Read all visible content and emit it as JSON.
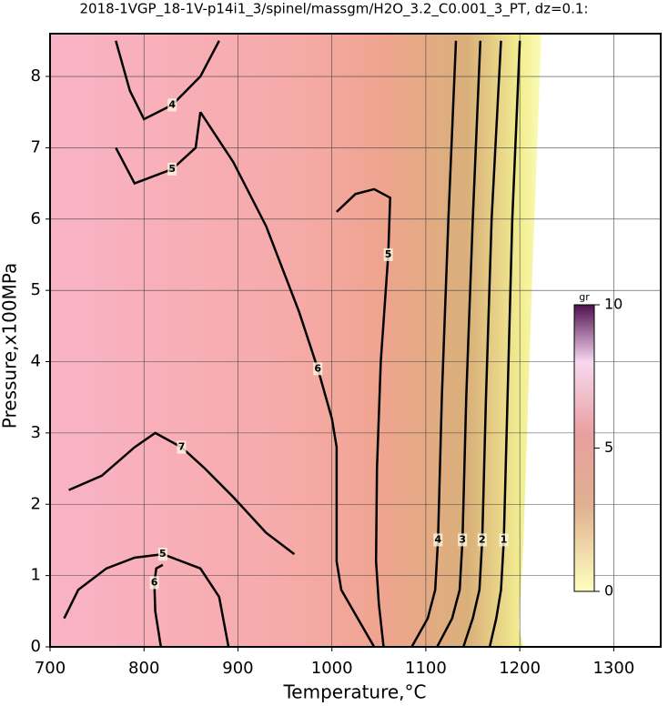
{
  "chart_data": {
    "type": "contour",
    "title": "2018-1VGP_18-1V-p14i1_3/spinel/massgm/H2O_3.2_C0.001_3_PT, dz=0.1:",
    "x_label": "Temperature,°C",
    "y_label": "Pressure,x100MPa",
    "xlim": [
      700,
      1350
    ],
    "ylim": [
      0,
      8.6
    ],
    "xticks": [
      700,
      800,
      900,
      1000,
      1100,
      1200,
      1300
    ],
    "yticks": [
      0,
      1,
      2,
      3,
      4,
      5,
      6,
      7,
      8
    ],
    "grid": true,
    "contours": [
      {
        "name": "1",
        "level": 1,
        "x": [
          1168,
          1175,
          1180,
          1183,
          1187,
          1192,
          1200
        ],
        "y": [
          0,
          0.4,
          0.8,
          1.5,
          3.5,
          6,
          8.5
        ]
      },
      {
        "name": "2",
        "level": 2,
        "x": [
          1140,
          1150,
          1157,
          1160,
          1164,
          1170,
          1180
        ],
        "y": [
          0,
          0.4,
          0.8,
          1.5,
          3.5,
          6,
          8.5
        ]
      },
      {
        "name": "3",
        "level": 3,
        "x": [
          1112,
          1128,
          1136,
          1139,
          1143,
          1150,
          1158
        ],
        "y": [
          0,
          0.4,
          0.8,
          1.5,
          3.5,
          6,
          8.5
        ]
      },
      {
        "name": "4",
        "level": 4,
        "x": [
          1085,
          1102,
          1110,
          1113,
          1117,
          1124,
          1132
        ],
        "y": [
          0,
          0.4,
          0.8,
          1.5,
          3.5,
          6,
          8.5
        ]
      },
      {
        "name": "5",
        "level": 5,
        "x": [
          1055,
          1050,
          1047,
          1048,
          1052,
          1060,
          1062,
          1045,
          1025,
          1005
        ],
        "y": [
          0,
          0.6,
          1.2,
          2.5,
          4,
          5.5,
          6.3,
          6.42,
          6.35,
          6.1
        ]
      },
      {
        "name": "6",
        "level": 6,
        "x": [
          1045,
          1010,
          1005,
          1005,
          1000,
          985,
          965,
          930,
          895,
          860
        ],
        "y": [
          0,
          0.8,
          1.2,
          2.8,
          3.2,
          3.9,
          4.7,
          5.9,
          6.8,
          7.5
        ]
      },
      {
        "name": "7",
        "level": 7,
        "x": [
          960,
          930,
          895,
          865,
          840,
          812,
          790,
          755,
          720
        ],
        "y": [
          1.3,
          1.6,
          2.1,
          2.5,
          2.8,
          3.0,
          2.8,
          2.4,
          2.2
        ]
      },
      {
        "name": "6",
        "level": 6,
        "x": [
          818,
          812,
          811,
          813,
          820
        ],
        "y": [
          0,
          0.5,
          0.9,
          1.1,
          1.15
        ]
      },
      {
        "name": "5",
        "level": 5,
        "x": [
          715,
          730,
          760,
          790,
          820,
          860,
          880,
          890
        ],
        "y": [
          0.4,
          0.8,
          1.1,
          1.25,
          1.3,
          1.1,
          0.7,
          0
        ]
      },
      {
        "name": "4",
        "level": 4,
        "x": [
          770,
          785,
          800,
          830,
          860,
          880
        ],
        "y": [
          8.5,
          7.8,
          7.4,
          7.6,
          8.0,
          8.5
        ]
      },
      {
        "name": "5",
        "level": 5,
        "x": [
          770,
          790,
          830,
          855,
          860
        ],
        "y": [
          7.0,
          6.5,
          6.7,
          7.0,
          7.5
        ]
      }
    ],
    "colorbar": {
      "label": "gr",
      "lim": [
        0,
        10
      ],
      "ticks": [
        0,
        5,
        10
      ]
    }
  }
}
